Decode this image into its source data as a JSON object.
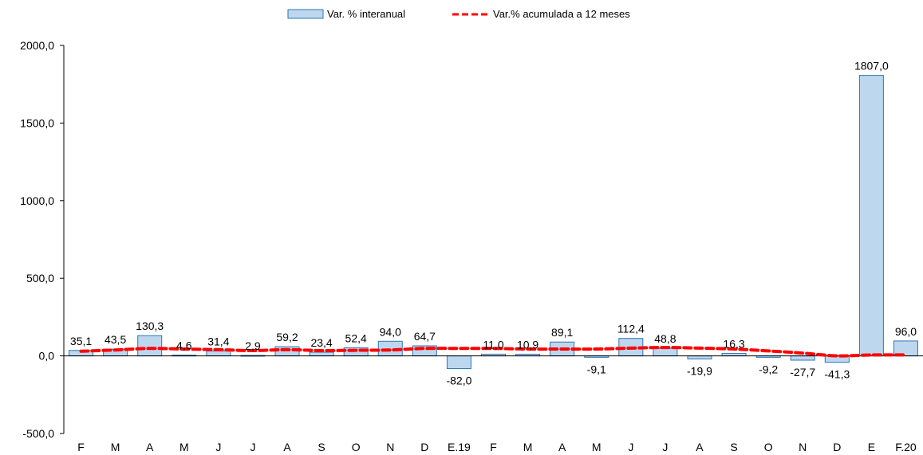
{
  "chart_data": {
    "type": "bar",
    "categories": [
      "F",
      "M",
      "A",
      "M",
      "J",
      "J",
      "A",
      "S",
      "O",
      "N",
      "D",
      "E.19",
      "F",
      "M",
      "A",
      "M",
      "J",
      "J",
      "A",
      "S",
      "O",
      "N",
      "D",
      "E",
      "F.20"
    ],
    "series": [
      {
        "name": "Var. % interanual",
        "type": "bar",
        "values": [
          35.1,
          43.5,
          130.3,
          4.6,
          31.4,
          2.9,
          59.2,
          23.4,
          52.4,
          94.0,
          64.7,
          -82.0,
          11.0,
          10.9,
          89.1,
          -9.1,
          112.4,
          48.8,
          -19.9,
          16.3,
          -9.2,
          -27.7,
          -41.3,
          1807.0,
          96.0
        ],
        "labels": [
          "35,1",
          "43,5",
          "130,3",
          "4,6",
          "31,4",
          "2,9",
          "59,2",
          "23,4",
          "52,4",
          "94,0",
          "64,7",
          "-82,0",
          "11,0",
          "10,9",
          "89,1",
          "-9,1",
          "112,4",
          "48,8",
          "-19,9",
          "16,3",
          "-9,2",
          "-27,7",
          "-41,3",
          "1807,0",
          "96,0"
        ],
        "color": "#bdd7ee",
        "border_color": "#2e75b6"
      },
      {
        "name": "Var.% acumulada a 12 meses",
        "type": "line",
        "style": "dashed",
        "values": [
          30,
          38,
          48,
          44,
          40,
          34,
          40,
          34,
          36,
          38,
          48,
          48,
          48,
          44,
          44,
          44,
          50,
          54,
          50,
          44,
          32,
          18,
          0,
          6,
          6
        ],
        "color": "#ff0000"
      }
    ],
    "ylim": [
      -500,
      2000
    ],
    "yticks": [
      -500,
      0,
      500,
      1000,
      1500,
      2000
    ],
    "ytick_labels": [
      "-500,0",
      "0,0",
      "500,0",
      "1000,0",
      "1500,0",
      "2000,0"
    ],
    "legend_position": "top-center",
    "grid": false,
    "title": "",
    "xlabel": "",
    "ylabel": ""
  }
}
